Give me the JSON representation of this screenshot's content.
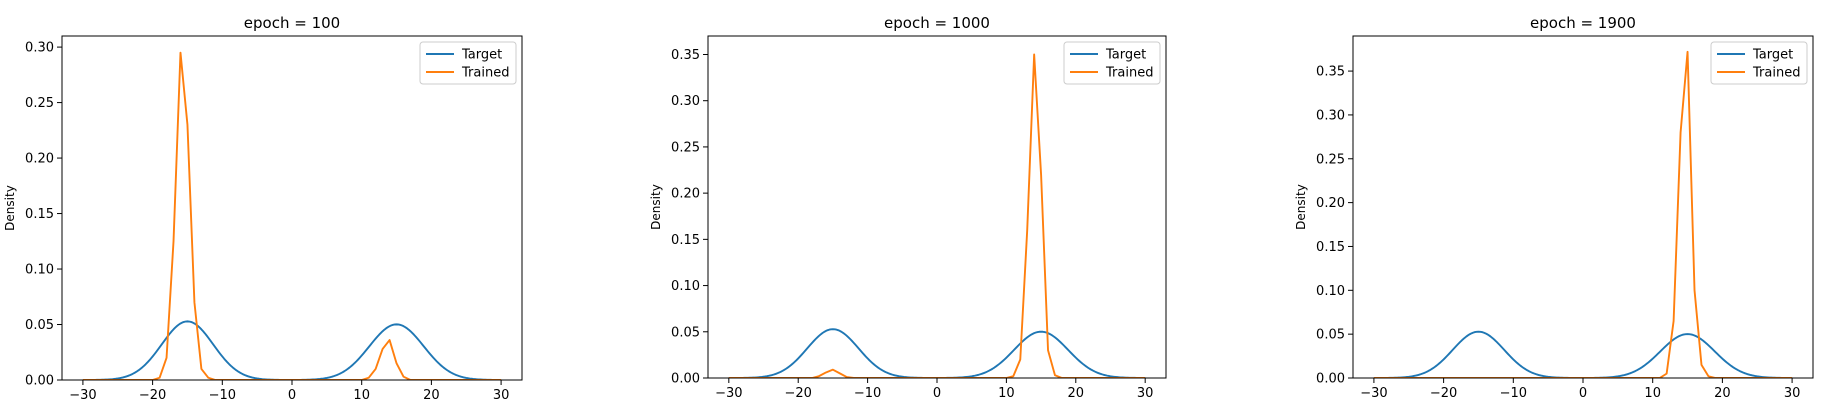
{
  "chart_data": [
    {
      "type": "line",
      "title": "epoch = 100",
      "xlabel": "",
      "ylabel": "Density",
      "xlim": [
        -33,
        33
      ],
      "ylim": [
        0,
        0.31
      ],
      "xticks": [
        -30,
        -20,
        -10,
        0,
        10,
        20,
        30
      ],
      "yticks": [
        0.0,
        0.05,
        0.1,
        0.15,
        0.2,
        0.25,
        0.3
      ],
      "legend_position": "top-right",
      "series": [
        {
          "name": "Target",
          "color": "#1f77b4",
          "mixture": [
            {
              "mean": -15,
              "sd": 3.7,
              "weight": 0.49
            },
            {
              "mean": 15,
              "sd": 3.9,
              "weight": 0.49
            }
          ]
        },
        {
          "name": "Trained",
          "color": "#ff7f0e",
          "x": [
            -30,
            -20,
            -19,
            -18,
            -17,
            -16,
            -15,
            -14,
            -13,
            -12,
            -11,
            -10,
            0,
            10,
            11,
            12,
            13,
            14,
            15,
            16,
            17,
            18,
            30
          ],
          "y": [
            0,
            0,
            0.002,
            0.02,
            0.125,
            0.295,
            0.23,
            0.07,
            0.01,
            0.002,
            0,
            0,
            0,
            0,
            0.002,
            0.01,
            0.028,
            0.036,
            0.015,
            0.003,
            0,
            0,
            0
          ]
        }
      ]
    },
    {
      "type": "line",
      "title": "epoch = 1000",
      "xlabel": "",
      "ylabel": "Density",
      "xlim": [
        -33,
        33
      ],
      "ylim": [
        0,
        0.37
      ],
      "xticks": [
        -30,
        -20,
        -10,
        0,
        10,
        20,
        30
      ],
      "yticks": [
        0.0,
        0.05,
        0.1,
        0.15,
        0.2,
        0.25,
        0.3,
        0.35
      ],
      "legend_position": "top-right",
      "series": [
        {
          "name": "Target",
          "color": "#1f77b4",
          "mixture": [
            {
              "mean": -15,
              "sd": 3.7,
              "weight": 0.49
            },
            {
              "mean": 15,
              "sd": 3.9,
              "weight": 0.49
            }
          ]
        },
        {
          "name": "Trained",
          "color": "#ff7f0e",
          "x": [
            -30,
            -18,
            -17,
            -16,
            -15,
            -14,
            -13,
            -12,
            0,
            10,
            11,
            12,
            13,
            14,
            15,
            16,
            17,
            18,
            30
          ],
          "y": [
            0,
            0,
            0.002,
            0.006,
            0.009,
            0.005,
            0.001,
            0,
            0,
            0,
            0.002,
            0.02,
            0.16,
            0.35,
            0.22,
            0.03,
            0.003,
            0,
            0
          ]
        }
      ]
    },
    {
      "type": "line",
      "title": "epoch = 1900",
      "xlabel": "",
      "ylabel": "Density",
      "xlim": [
        -33,
        33
      ],
      "ylim": [
        0,
        0.39
      ],
      "xticks": [
        -30,
        -20,
        -10,
        0,
        10,
        20,
        30
      ],
      "yticks": [
        0.0,
        0.05,
        0.1,
        0.15,
        0.2,
        0.25,
        0.3,
        0.35
      ],
      "legend_position": "top-right",
      "series": [
        {
          "name": "Target",
          "color": "#1f77b4",
          "mixture": [
            {
              "mean": -15,
              "sd": 3.7,
              "weight": 0.49
            },
            {
              "mean": 15,
              "sd": 3.9,
              "weight": 0.49
            }
          ]
        },
        {
          "name": "Trained",
          "color": "#ff7f0e",
          "x": [
            -30,
            0,
            11,
            12,
            13,
            14,
            15,
            16,
            17,
            18,
            19,
            30
          ],
          "y": [
            0,
            0,
            0,
            0.005,
            0.065,
            0.28,
            0.372,
            0.1,
            0.015,
            0.002,
            0,
            0
          ]
        }
      ]
    }
  ]
}
